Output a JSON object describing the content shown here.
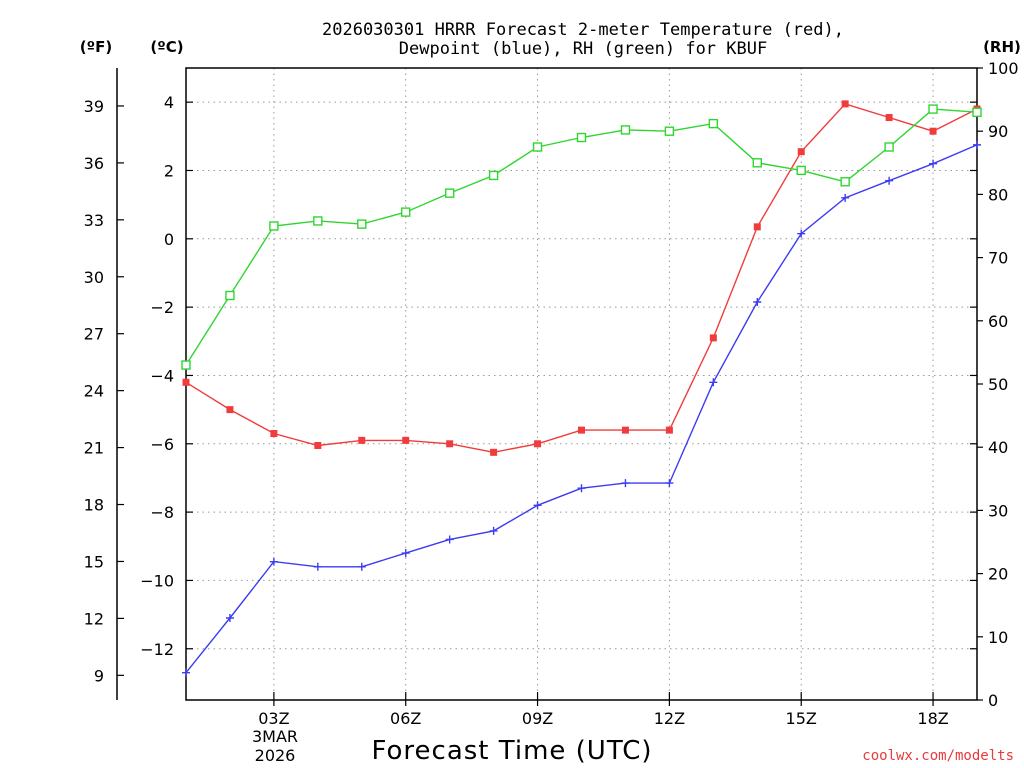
{
  "chart_data": {
    "type": "line",
    "title_lines": [
      "2026030301 HRRR Forecast 2-meter Temperature (red),",
      "Dewpoint (blue), RH (green) for KBUF"
    ],
    "xlabel": "Forecast Time (UTC)",
    "credit": "coolwx.com/modelts",
    "date_labels": [
      "3MAR",
      "2026"
    ],
    "units": {
      "left_f": "(ºF)",
      "left_c": "(ºC)",
      "right": "(RH)"
    },
    "x": [
      1,
      2,
      3,
      4,
      5,
      6,
      7,
      8,
      9,
      10,
      11,
      12,
      13,
      14,
      15,
      16,
      17,
      18,
      19
    ],
    "xlim": [
      1,
      19
    ],
    "x_ticks": [
      {
        "x": 3,
        "label": "03Z"
      },
      {
        "x": 6,
        "label": "06Z"
      },
      {
        "x": 9,
        "label": "09Z"
      },
      {
        "x": 12,
        "label": "12Z"
      },
      {
        "x": 15,
        "label": "15Z"
      },
      {
        "x": 18,
        "label": "18Z"
      }
    ],
    "y_celsius": {
      "lim": [
        -13.5,
        5
      ],
      "ticks": [
        -12,
        -10,
        -8,
        -6,
        -4,
        -2,
        0,
        2,
        4
      ]
    },
    "y_fahrenheit": {
      "ticks": [
        9,
        12,
        15,
        18,
        21,
        24,
        27,
        30,
        33,
        36,
        39
      ]
    },
    "y_rh": {
      "lim": [
        0,
        100
      ],
      "ticks": [
        0,
        10,
        20,
        30,
        40,
        50,
        60,
        70,
        80,
        90,
        100
      ]
    },
    "series": [
      {
        "name": "Temperature",
        "axis": "celsius",
        "color": "#f03c3c",
        "marker": "filled-square",
        "values": [
          -4.2,
          -5.0,
          -5.7,
          -6.05,
          -5.9,
          -5.9,
          -6.0,
          -6.25,
          -6.0,
          -5.6,
          -5.6,
          -5.6,
          -2.9,
          0.35,
          2.55,
          3.95,
          3.55,
          3.15,
          3.8
        ]
      },
      {
        "name": "Dewpoint",
        "axis": "celsius",
        "color": "#3c3cf0",
        "marker": "plus",
        "values": [
          -12.7,
          -11.1,
          -9.45,
          -9.6,
          -9.6,
          -9.2,
          -8.8,
          -8.55,
          -7.8,
          -7.3,
          -7.15,
          -7.15,
          -4.2,
          -1.85,
          0.15,
          1.2,
          1.7,
          2.2,
          2.75
        ]
      },
      {
        "name": "RH",
        "axis": "rh",
        "color": "#30d630",
        "marker": "open-square",
        "values": [
          53,
          64,
          75,
          75.8,
          75.3,
          77.2,
          80.2,
          83,
          87.5,
          89,
          90.2,
          90,
          91.2,
          85,
          83.8,
          82,
          87.5,
          93.5,
          93
        ]
      }
    ]
  }
}
